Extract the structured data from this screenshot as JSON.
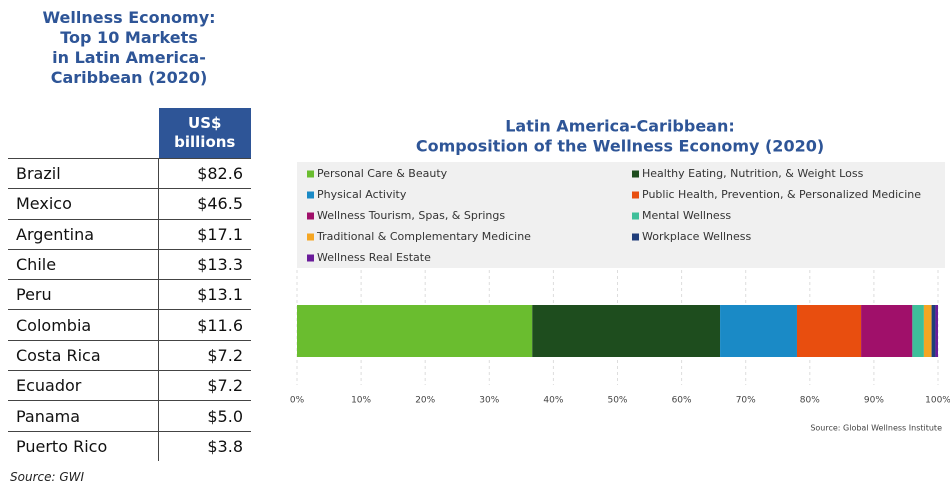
{
  "table": {
    "title": [
      "Wellness Economy:",
      "Top 10 Markets",
      "in Latin America-",
      "Caribbean (2020)"
    ],
    "header": "US$ billions",
    "rows": [
      [
        "Brazil",
        "$82.6"
      ],
      [
        "Mexico",
        "$46.5"
      ],
      [
        "Argentina",
        "$17.1"
      ],
      [
        "Chile",
        "$13.3"
      ],
      [
        "Peru",
        "$13.1"
      ],
      [
        "Colombia",
        "$11.6"
      ],
      [
        "Costa Rica",
        "$7.2"
      ],
      [
        "Ecuador",
        "$7.2"
      ],
      [
        "Panama",
        "$5.0"
      ],
      [
        "Puerto Rico",
        "$3.8"
      ]
    ],
    "source": "Source: GWI"
  },
  "chart_data": {
    "type": "stacked-bar-horizontal",
    "title": [
      "Latin America-Caribbean:",
      "Composition of the Wellness Economy (2020)"
    ],
    "categories": [
      null
    ],
    "series": [
      {
        "name": "Personal Care & Beauty",
        "color": "#6abd2f",
        "values": [
          36.7
        ]
      },
      {
        "name": "Healthy Eating, Nutrition, & Weight Loss",
        "color": "#1e4d1e",
        "values": [
          29.3
        ]
      },
      {
        "name": "Physical Activity",
        "color": "#1a8ac6",
        "values": [
          12
        ]
      },
      {
        "name": "Public Health, Prevention, & Personalized Medicine",
        "color": "#e84e0f",
        "values": [
          10
        ]
      },
      {
        "name": "Wellness Tourism, Spas, & Springs",
        "color": "#a0106a",
        "values": [
          8
        ]
      },
      {
        "name": "Mental Wellness",
        "color": "#3fbf9a",
        "values": [
          1.8
        ]
      },
      {
        "name": "Traditional & Complementary Medicine",
        "color": "#f5a623",
        "values": [
          1.2
        ]
      },
      {
        "name": "Workplace Wellness",
        "color": "#1f3d7a",
        "values": [
          0.6
        ]
      },
      {
        "name": "Wellness Real Estate",
        "color": "#6a1b9a",
        "values": [
          0.4
        ]
      }
    ],
    "xlim": [
      0,
      100
    ],
    "xticks": [
      {
        "value": 0,
        "label": "0%"
      },
      {
        "value": 10,
        "label": "10%"
      },
      {
        "value": 20,
        "label": "20%"
      },
      {
        "value": 30,
        "label": "30%"
      },
      {
        "value": 40,
        "label": "40%"
      },
      {
        "value": 50,
        "label": "50%"
      },
      {
        "value": 60,
        "label": "60%"
      },
      {
        "value": 70,
        "label": "70%"
      },
      {
        "value": 80,
        "label": "80%"
      },
      {
        "value": 90,
        "label": "90%"
      },
      {
        "value": 100,
        "label": "100%"
      }
    ],
    "grid": true,
    "source": "Source: Global Wellness Institute"
  }
}
